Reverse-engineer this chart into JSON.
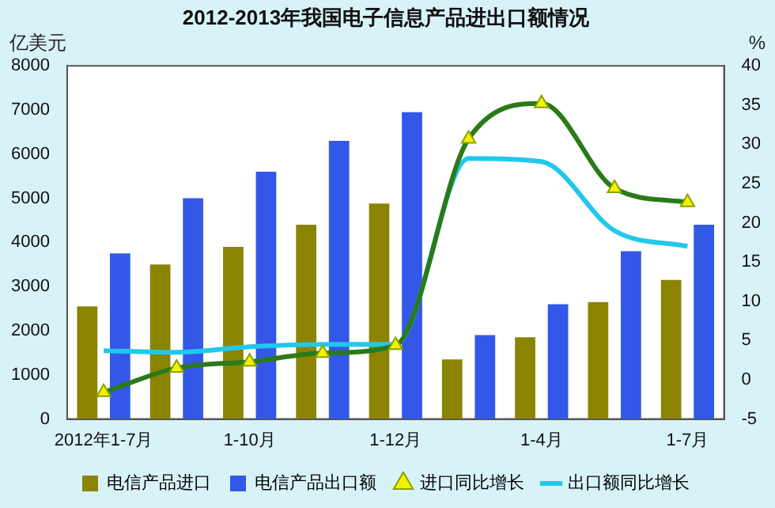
{
  "chart_data": {
    "type": "bar",
    "title": "2012-2013年我国电子信息产品进出口额情况",
    "ylabel": "亿美元",
    "y2label": "%",
    "categories": [
      "2012年1-7月",
      null,
      "1-10月",
      null,
      "1-12月",
      null,
      "1-4月",
      null,
      "1-7月"
    ],
    "series": [
      {
        "name": "电信产品进口",
        "color": "#8a8400",
        "values": [
          2550,
          3500,
          3900,
          4400,
          4880,
          1350,
          1850,
          2650,
          3150
        ]
      },
      {
        "name": "电信产品出口额",
        "color": "#3358e8",
        "values": [
          3750,
          5000,
          5600,
          6300,
          6950,
          1900,
          2600,
          3800,
          4400
        ]
      },
      {
        "name": "进口同比增长",
        "type": "line",
        "axis": "y2",
        "color": "#2a7a1a",
        "marker": "triangle",
        "values": [
          -1.6,
          1.5,
          2.3,
          3.4,
          4.4,
          30.7,
          35.2,
          24.4,
          22.6
        ]
      },
      {
        "name": "出口额同比增长",
        "type": "line",
        "axis": "y2",
        "color": "#22c8ec",
        "marker": "none",
        "values": [
          3.7,
          3.5,
          4.2,
          4.5,
          4.5,
          28.2,
          27.8,
          19.0,
          17.0
        ]
      }
    ],
    "ylim": [
      0,
      8000
    ],
    "yticks": [
      0,
      1000,
      2000,
      3000,
      4000,
      5000,
      6000,
      7000,
      8000
    ],
    "y2lim": [
      -5,
      40
    ],
    "y2ticks": [
      -5,
      0,
      5,
      10,
      15,
      20,
      25,
      30,
      35,
      40
    ],
    "grid": false,
    "legend": "bottom"
  }
}
